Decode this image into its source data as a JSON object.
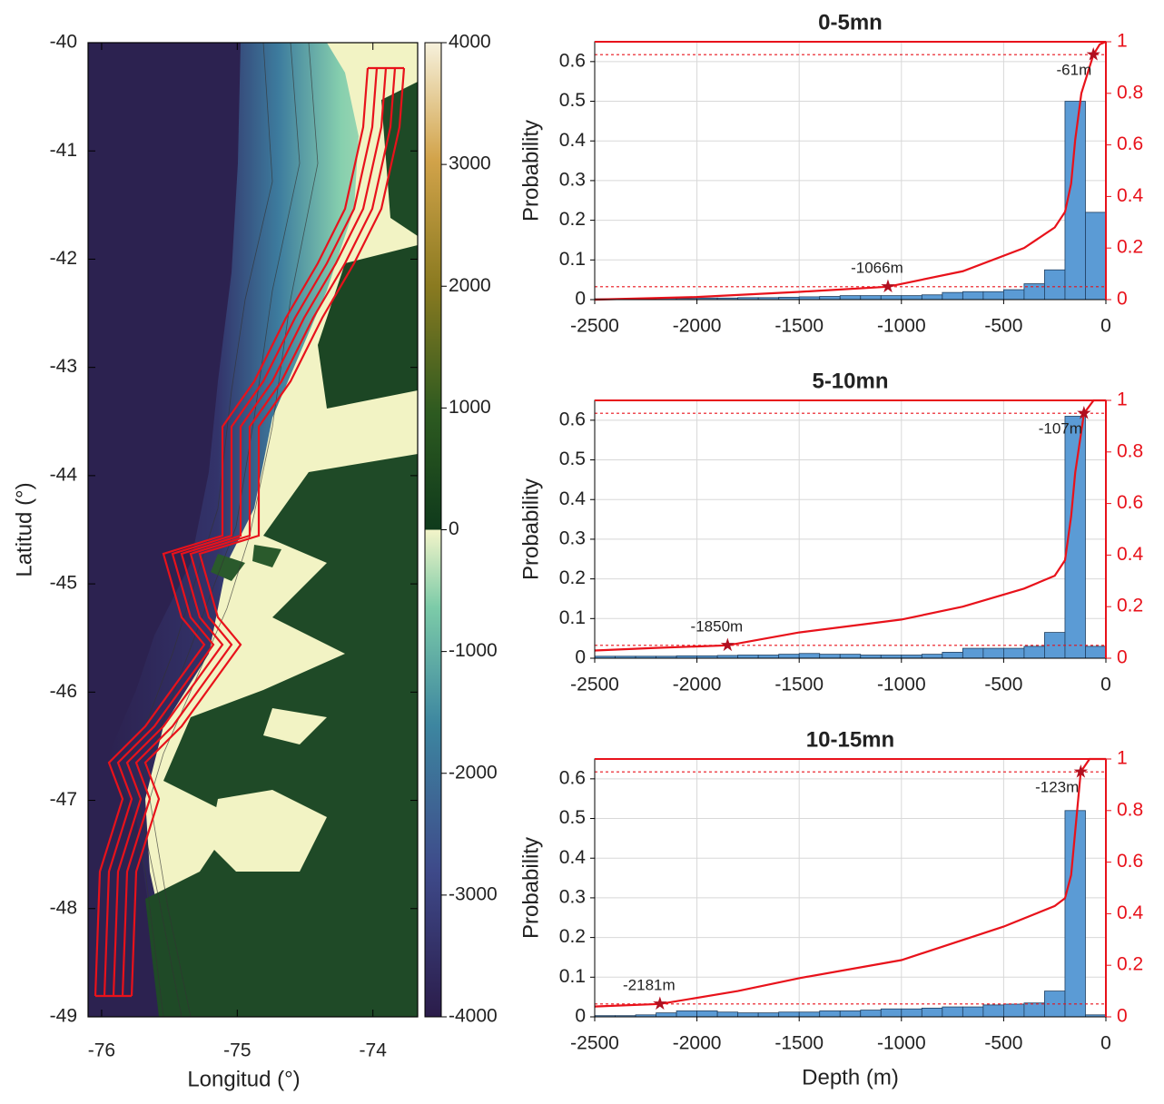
{
  "chart_data": [
    {
      "type": "map",
      "xlabel": "Longitud (°)",
      "ylabel": "Latitud (°)",
      "xlim": [
        -76.1,
        -73.67
      ],
      "xticks": [
        -76,
        -75,
        -74
      ],
      "ylim": [
        -49,
        -40
      ],
      "yticks": [
        -49,
        -48,
        -47,
        -46,
        -45,
        -44,
        -43,
        -42,
        -41,
        -40
      ],
      "clim": [
        -4000,
        4000
      ],
      "colorbar_ticks": [
        -4000,
        -3000,
        -2000,
        -1000,
        0,
        1000,
        2000,
        3000,
        4000
      ]
    },
    {
      "type": "histogram",
      "title": "0-5mn",
      "ylabel": "Probability",
      "color": "#5b9bd5",
      "grid": true,
      "bins": [
        -2500,
        -2400,
        -2300,
        -2200,
        -2100,
        -2000,
        -1900,
        -1800,
        -1700,
        -1600,
        -1500,
        -1400,
        -1300,
        -1200,
        -1100,
        -1000,
        -900,
        -800,
        -700,
        -600,
        -500,
        -400,
        -300,
        -200,
        -100,
        0
      ],
      "values": [
        0.002,
        0.002,
        0.002,
        0.003,
        0.003,
        0.004,
        0.004,
        0.005,
        0.005,
        0.006,
        0.007,
        0.008,
        0.01,
        0.01,
        0.01,
        0.01,
        0.012,
        0.018,
        0.02,
        0.02,
        0.025,
        0.04,
        0.075,
        0.5,
        0.22
      ],
      "xlim": [
        -2500,
        0
      ],
      "xticks": [
        -2500,
        -2000,
        -1500,
        -1000,
        -500,
        0
      ],
      "ylim": [
        0,
        0.65
      ],
      "yticks": [
        0,
        0.1,
        0.2,
        0.3,
        0.4,
        0.5,
        0.6
      ],
      "y2lim": [
        0,
        1
      ],
      "y2ticks": [
        0,
        0.2,
        0.4,
        0.6,
        0.8,
        1
      ],
      "series": [
        {
          "color": "#e8121b",
          "axis": "y2",
          "x": [
            -2500,
            -2000,
            -1500,
            -1066,
            -700,
            -400,
            -250,
            -200,
            -170,
            -150,
            -120,
            -61,
            -30,
            0
          ],
          "values": [
            0,
            0.01,
            0.03,
            0.05,
            0.11,
            0.2,
            0.28,
            0.34,
            0.45,
            0.62,
            0.8,
            0.95,
            0.99,
            1
          ]
        }
      ],
      "y2_reference_lines": [
        0.05,
        0.95
      ],
      "annotations": [
        {
          "text": "-1066m",
          "x": -1066,
          "y": 0.05
        },
        {
          "text": "-61m",
          "x": -61,
          "y": 0.95
        }
      ]
    },
    {
      "type": "histogram",
      "title": "5-10mn",
      "ylabel": "Probability",
      "color": "#5b9bd5",
      "grid": true,
      "bins": [
        -2500,
        -2400,
        -2300,
        -2200,
        -2100,
        -2000,
        -1900,
        -1800,
        -1700,
        -1600,
        -1500,
        -1400,
        -1300,
        -1200,
        -1100,
        -1000,
        -900,
        -800,
        -700,
        -600,
        -500,
        -400,
        -300,
        -200,
        -100,
        0
      ],
      "values": [
        0.005,
        0.005,
        0.005,
        0.005,
        0.006,
        0.006,
        0.007,
        0.008,
        0.008,
        0.01,
        0.012,
        0.01,
        0.01,
        0.008,
        0.008,
        0.008,
        0.01,
        0.015,
        0.025,
        0.025,
        0.025,
        0.03,
        0.065,
        0.61,
        0.03
      ],
      "xlim": [
        -2500,
        0
      ],
      "xticks": [
        -2500,
        -2000,
        -1500,
        -1000,
        -500,
        0
      ],
      "ylim": [
        0,
        0.65
      ],
      "yticks": [
        0,
        0.1,
        0.2,
        0.3,
        0.4,
        0.5,
        0.6
      ],
      "y2lim": [
        0,
        1
      ],
      "y2ticks": [
        0,
        0.2,
        0.4,
        0.6,
        0.8,
        1
      ],
      "series": [
        {
          "color": "#e8121b",
          "axis": "y2",
          "x": [
            -2500,
            -2200,
            -1850,
            -1500,
            -1000,
            -700,
            -400,
            -250,
            -200,
            -170,
            -150,
            -107,
            -60,
            0
          ],
          "values": [
            0.03,
            0.04,
            0.05,
            0.1,
            0.15,
            0.2,
            0.27,
            0.32,
            0.38,
            0.55,
            0.72,
            0.95,
            1,
            1
          ]
        }
      ],
      "y2_reference_lines": [
        0.05,
        0.95
      ],
      "annotations": [
        {
          "text": "-1850m",
          "x": -1850,
          "y": 0.05
        },
        {
          "text": "-107m",
          "x": -107,
          "y": 0.95
        }
      ]
    },
    {
      "type": "histogram",
      "title": "10-15mn",
      "xlabel": "Depth (m)",
      "ylabel": "Probability",
      "color": "#5b9bd5",
      "grid": true,
      "bins": [
        -2500,
        -2400,
        -2300,
        -2200,
        -2100,
        -2000,
        -1900,
        -1800,
        -1700,
        -1600,
        -1500,
        -1400,
        -1300,
        -1200,
        -1100,
        -1000,
        -900,
        -800,
        -700,
        -600,
        -500,
        -400,
        -300,
        -200,
        -100,
        0
      ],
      "values": [
        0.003,
        0.003,
        0.005,
        0.01,
        0.015,
        0.015,
        0.012,
        0.01,
        0.01,
        0.012,
        0.012,
        0.015,
        0.015,
        0.017,
        0.02,
        0.02,
        0.022,
        0.025,
        0.025,
        0.03,
        0.032,
        0.035,
        0.065,
        0.52,
        0.005
      ],
      "xlim": [
        -2500,
        0
      ],
      "xticks": [
        -2500,
        -2000,
        -1500,
        -1000,
        -500,
        0
      ],
      "ylim": [
        0,
        0.65
      ],
      "yticks": [
        0,
        0.1,
        0.2,
        0.3,
        0.4,
        0.5,
        0.6
      ],
      "y2lim": [
        0,
        1
      ],
      "y2ticks": [
        0,
        0.2,
        0.4,
        0.6,
        0.8,
        1
      ],
      "series": [
        {
          "color": "#e8121b",
          "axis": "y2",
          "x": [
            -2500,
            -2181,
            -1800,
            -1500,
            -1000,
            -500,
            -250,
            -200,
            -170,
            -150,
            -123,
            -80,
            0
          ],
          "values": [
            0.04,
            0.05,
            0.1,
            0.15,
            0.22,
            0.35,
            0.43,
            0.46,
            0.55,
            0.72,
            0.95,
            1,
            1
          ]
        }
      ],
      "y2_reference_lines": [
        0.05,
        0.95
      ],
      "annotations": [
        {
          "text": "-2181m",
          "x": -2181,
          "y": 0.05
        },
        {
          "text": "-123m",
          "x": -123,
          "y": 0.95
        }
      ]
    }
  ]
}
